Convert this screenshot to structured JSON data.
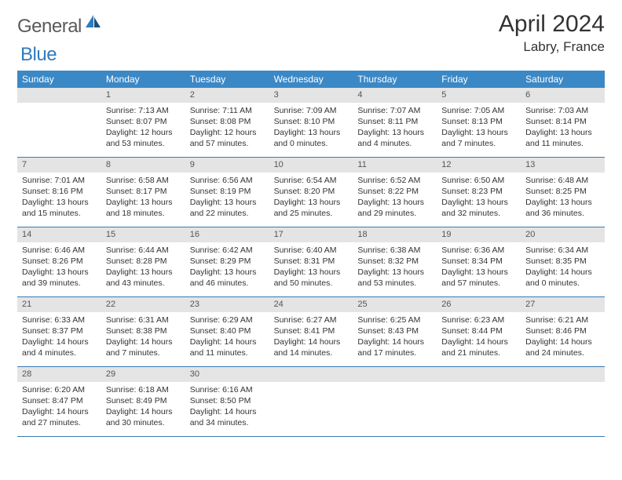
{
  "logo": {
    "general": "General",
    "blue": "Blue"
  },
  "header": {
    "title": "April 2024",
    "location": "Labry, France"
  },
  "colors": {
    "header_bg": "#3b88c6",
    "header_text": "#ffffff",
    "daynum_bg": "#e4e4e4",
    "border": "#3a7bb0",
    "logo_gray": "#5a5a5a",
    "logo_blue": "#2f7bbf"
  },
  "weekdays": [
    "Sunday",
    "Monday",
    "Tuesday",
    "Wednesday",
    "Thursday",
    "Friday",
    "Saturday"
  ],
  "weeks": [
    [
      {
        "empty": true
      },
      {
        "num": "1",
        "sunrise": "7:13 AM",
        "sunset": "8:07 PM",
        "daylight": "12 hours and 53 minutes."
      },
      {
        "num": "2",
        "sunrise": "7:11 AM",
        "sunset": "8:08 PM",
        "daylight": "12 hours and 57 minutes."
      },
      {
        "num": "3",
        "sunrise": "7:09 AM",
        "sunset": "8:10 PM",
        "daylight": "13 hours and 0 minutes."
      },
      {
        "num": "4",
        "sunrise": "7:07 AM",
        "sunset": "8:11 PM",
        "daylight": "13 hours and 4 minutes."
      },
      {
        "num": "5",
        "sunrise": "7:05 AM",
        "sunset": "8:13 PM",
        "daylight": "13 hours and 7 minutes."
      },
      {
        "num": "6",
        "sunrise": "7:03 AM",
        "sunset": "8:14 PM",
        "daylight": "13 hours and 11 minutes."
      }
    ],
    [
      {
        "num": "7",
        "sunrise": "7:01 AM",
        "sunset": "8:16 PM",
        "daylight": "13 hours and 15 minutes."
      },
      {
        "num": "8",
        "sunrise": "6:58 AM",
        "sunset": "8:17 PM",
        "daylight": "13 hours and 18 minutes."
      },
      {
        "num": "9",
        "sunrise": "6:56 AM",
        "sunset": "8:19 PM",
        "daylight": "13 hours and 22 minutes."
      },
      {
        "num": "10",
        "sunrise": "6:54 AM",
        "sunset": "8:20 PM",
        "daylight": "13 hours and 25 minutes."
      },
      {
        "num": "11",
        "sunrise": "6:52 AM",
        "sunset": "8:22 PM",
        "daylight": "13 hours and 29 minutes."
      },
      {
        "num": "12",
        "sunrise": "6:50 AM",
        "sunset": "8:23 PM",
        "daylight": "13 hours and 32 minutes."
      },
      {
        "num": "13",
        "sunrise": "6:48 AM",
        "sunset": "8:25 PM",
        "daylight": "13 hours and 36 minutes."
      }
    ],
    [
      {
        "num": "14",
        "sunrise": "6:46 AM",
        "sunset": "8:26 PM",
        "daylight": "13 hours and 39 minutes."
      },
      {
        "num": "15",
        "sunrise": "6:44 AM",
        "sunset": "8:28 PM",
        "daylight": "13 hours and 43 minutes."
      },
      {
        "num": "16",
        "sunrise": "6:42 AM",
        "sunset": "8:29 PM",
        "daylight": "13 hours and 46 minutes."
      },
      {
        "num": "17",
        "sunrise": "6:40 AM",
        "sunset": "8:31 PM",
        "daylight": "13 hours and 50 minutes."
      },
      {
        "num": "18",
        "sunrise": "6:38 AM",
        "sunset": "8:32 PM",
        "daylight": "13 hours and 53 minutes."
      },
      {
        "num": "19",
        "sunrise": "6:36 AM",
        "sunset": "8:34 PM",
        "daylight": "13 hours and 57 minutes."
      },
      {
        "num": "20",
        "sunrise": "6:34 AM",
        "sunset": "8:35 PM",
        "daylight": "14 hours and 0 minutes."
      }
    ],
    [
      {
        "num": "21",
        "sunrise": "6:33 AM",
        "sunset": "8:37 PM",
        "daylight": "14 hours and 4 minutes."
      },
      {
        "num": "22",
        "sunrise": "6:31 AM",
        "sunset": "8:38 PM",
        "daylight": "14 hours and 7 minutes."
      },
      {
        "num": "23",
        "sunrise": "6:29 AM",
        "sunset": "8:40 PM",
        "daylight": "14 hours and 11 minutes."
      },
      {
        "num": "24",
        "sunrise": "6:27 AM",
        "sunset": "8:41 PM",
        "daylight": "14 hours and 14 minutes."
      },
      {
        "num": "25",
        "sunrise": "6:25 AM",
        "sunset": "8:43 PM",
        "daylight": "14 hours and 17 minutes."
      },
      {
        "num": "26",
        "sunrise": "6:23 AM",
        "sunset": "8:44 PM",
        "daylight": "14 hours and 21 minutes."
      },
      {
        "num": "27",
        "sunrise": "6:21 AM",
        "sunset": "8:46 PM",
        "daylight": "14 hours and 24 minutes."
      }
    ],
    [
      {
        "num": "28",
        "sunrise": "6:20 AM",
        "sunset": "8:47 PM",
        "daylight": "14 hours and 27 minutes."
      },
      {
        "num": "29",
        "sunrise": "6:18 AM",
        "sunset": "8:49 PM",
        "daylight": "14 hours and 30 minutes."
      },
      {
        "num": "30",
        "sunrise": "6:16 AM",
        "sunset": "8:50 PM",
        "daylight": "14 hours and 34 minutes."
      },
      {
        "empty": true
      },
      {
        "empty": true
      },
      {
        "empty": true
      },
      {
        "empty": true
      }
    ]
  ],
  "labels": {
    "sunrise": "Sunrise: ",
    "sunset": "Sunset: ",
    "daylight": "Daylight: "
  }
}
